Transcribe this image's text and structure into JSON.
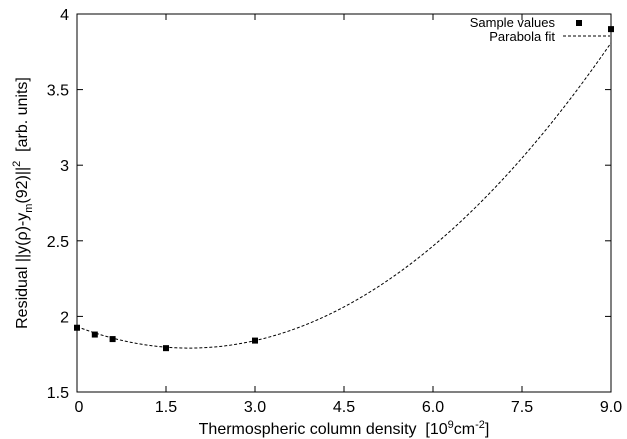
{
  "chart_data": {
    "type": "scatter",
    "xlabel": "Thermospheric column density",
    "xlabel_unit": "[10^9 cm^-2]",
    "ylabel": "Residual ||y(ρ)-y_m(92)||^2 [arb. units]",
    "xlim": [
      0,
      9.0
    ],
    "ylim": [
      1.5,
      4.0
    ],
    "x_ticks": [
      0,
      1.5,
      3.0,
      4.5,
      6.0,
      7.5,
      9.0
    ],
    "x_tick_labels": [
      "0",
      "1.5",
      "3.0",
      "4.5",
      "6.0",
      "7.5",
      "9.0"
    ],
    "y_ticks": [
      1.5,
      2.0,
      2.5,
      3.0,
      3.5,
      4.0
    ],
    "y_tick_labels": [
      "1.5",
      "2",
      "2.5",
      "3",
      "3.5",
      "4"
    ],
    "grid": false,
    "legend_position": "top-right",
    "series": [
      {
        "name": "Sample values",
        "style": "markers",
        "marker": "square",
        "color": "#000000",
        "points": [
          {
            "x": 0.0,
            "y": 1.925
          },
          {
            "x": 0.3,
            "y": 1.88
          },
          {
            "x": 0.6,
            "y": 1.85
          },
          {
            "x": 1.5,
            "y": 1.79
          },
          {
            "x": 3.0,
            "y": 1.84
          },
          {
            "x": 9.0,
            "y": 3.9
          }
        ]
      },
      {
        "name": "Parabola fit",
        "style": "dashed-line",
        "color": "#000000",
        "coefficients": {
          "a": 0.0399,
          "b": -0.1506,
          "c": 1.9325
        }
      }
    ]
  }
}
